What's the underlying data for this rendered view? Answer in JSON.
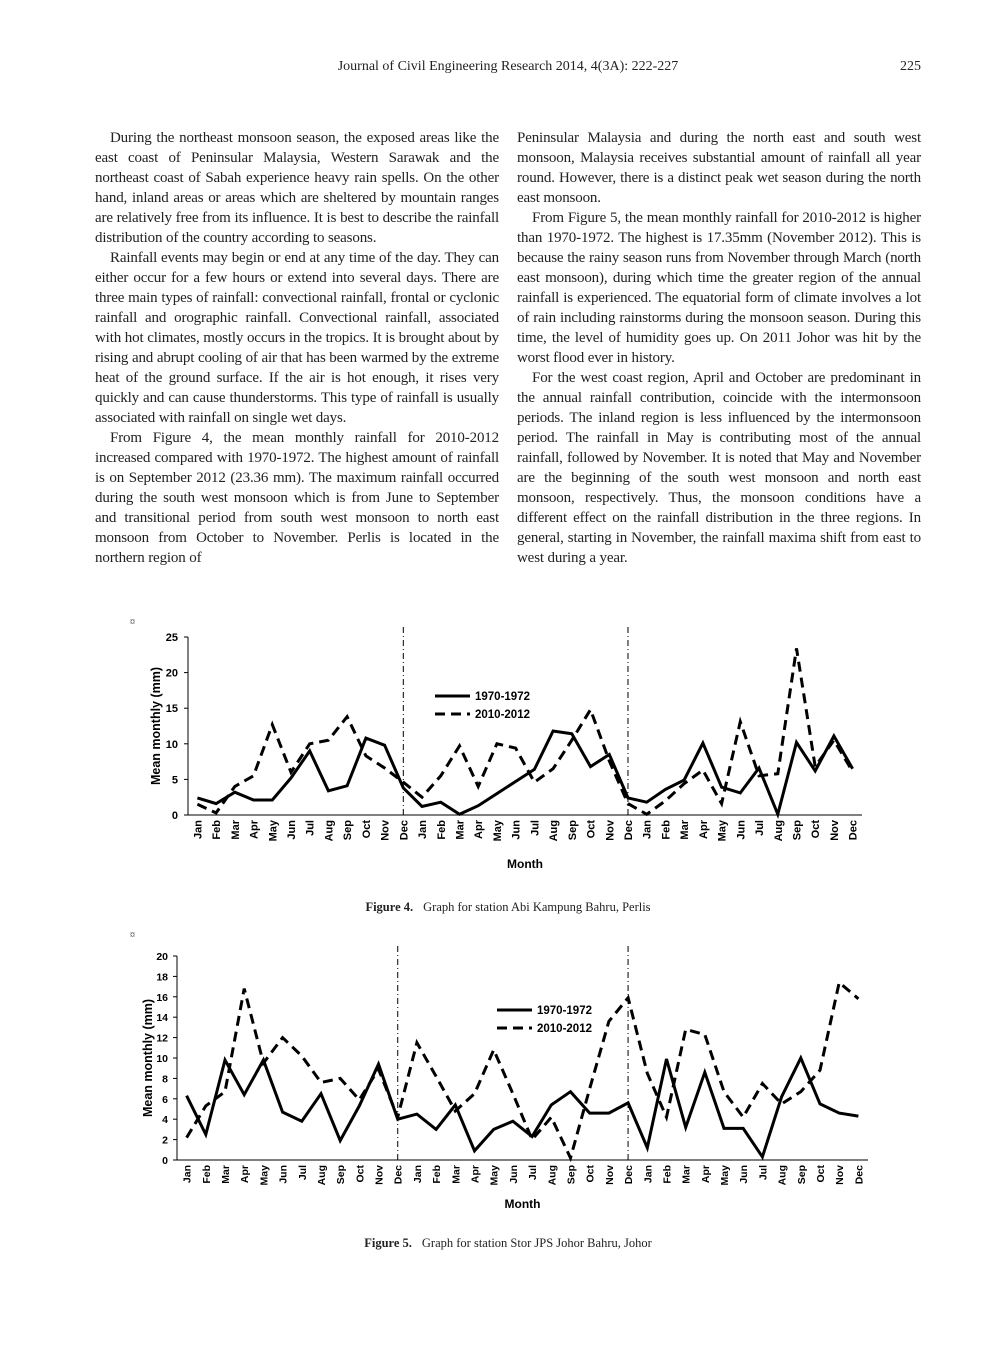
{
  "header": {
    "journal": "Journal of Civil Engineering Research 2014, 4(3A): 222-227",
    "page": "225"
  },
  "columns": [
    [
      "During the northeast monsoon season, the exposed areas like the east coast of Peninsular Malaysia, Western Sarawak and the northeast coast of Sabah experience heavy rain spells. On the other hand, inland areas or areas which are sheltered by mountain ranges are relatively free from its influence. It is best to describe the rainfall distribution of the country according to seasons.",
      "Rainfall events may begin or end at any time of the day. They can either occur for a few hours or extend into several days. There are three main types of rainfall: convectional rainfall, frontal or cyclonic rainfall and orographic rainfall. Convectional rainfall, associated with hot climates, mostly occurs in the tropics. It is brought about by rising and abrupt cooling of air that has been warmed by the extreme heat of the ground surface. If the air is hot enough, it rises very quickly and can cause thunderstorms. This type of rainfall is usually associated with rainfall on single wet days.",
      "From Figure 4, the mean monthly rainfall for 2010-2012 increased compared with 1970-1972. The highest amount of rainfall is on September 2012 (23.36 mm). The maximum rainfall occurred during the south west monsoon which is from June to September and transitional period from south west monsoon to north east monsoon from October to November. Perlis is located in the northern region of"
    ],
    [
      "Peninsular Malaysia and during the north east and south west monsoon, Malaysia receives substantial amount of rainfall all year round. However, there is a distinct peak wet season during the north east monsoon.",
      "From Figure 5, the mean monthly rainfall for 2010-2012 is higher than 1970-1972. The highest is 17.35mm (November 2012). This is because the rainy season runs from November through March (north east monsoon), during which time the greater region of the annual rainfall is experienced. The equatorial form of climate involves a lot of rain including rainstorms during the monsoon season. During this time, the level of humidity goes up. On 2011 Johor was hit by the worst flood ever in history.",
      "For the west coast region, April and October are predominant in the annual rainfall contribution, coincide with the intermonsoon periods. The inland region is less influenced by the intermonsoon period. The rainfall in May is contributing most of the annual rainfall, followed by November. It is noted that May and November are the beginning of the south west monsoon and north east monsoon, respectively. Thus, the monsoon conditions have a different effect on the rainfall distribution in the three regions. In general, starting in November, the rainfall maxima shift from east to west during a year."
    ]
  ],
  "figures": [
    {
      "marker": "¤",
      "label": "Figure 4.",
      "caption": "Graph for station Abi Kampung Bahru, Perlis"
    },
    {
      "marker": "¤",
      "label": "Figure 5.",
      "caption": "Graph for station Stor JPS Johor Bahru, Johor"
    }
  ],
  "chart_data": [
    {
      "type": "line",
      "x_label": "Month",
      "y_label": "Mean monthly (mm)",
      "categories": [
        "Jan",
        "Feb",
        "Mar",
        "Apr",
        "May",
        "Jun",
        "Jul",
        "Aug",
        "Sep",
        "Oct",
        "Nov",
        "Dec",
        "Jan",
        "Feb",
        "Mar",
        "Apr",
        "May",
        "Jun",
        "Jul",
        "Aug",
        "Sep",
        "Oct",
        "Nov",
        "Dec",
        "Jan",
        "Feb",
        "Mar",
        "Apr",
        "May",
        "Jun",
        "Jul",
        "Aug",
        "Sep",
        "Oct",
        "Nov",
        "Dec"
      ],
      "ylim": [
        0,
        25
      ],
      "yticks": [
        0,
        5,
        10,
        15,
        20,
        25
      ],
      "series": [
        {
          "name": "1970-1972",
          "color": "#000000",
          "dash": "solid",
          "values": [
            2.4,
            1.6,
            3.2,
            2.1,
            2.1,
            5.2,
            9,
            3.4,
            4.1,
            10.8,
            9.8,
            3.8,
            1.2,
            1.8,
            0.1,
            1.3,
            3,
            4.7,
            6.4,
            11.8,
            11.4,
            6.8,
            8.5,
            2.4,
            1.8,
            3.6,
            4.9,
            10.1,
            3.9,
            3.1,
            6.6,
            0.1,
            10.2,
            6.2,
            11.1,
            6.5
          ]
        },
        {
          "name": "2010-2012",
          "color": "#000000",
          "dash": "dashed",
          "values": [
            1.5,
            0.3,
            4,
            5.5,
            12.7,
            6,
            10,
            10.5,
            13.8,
            8.3,
            6.6,
            4.6,
            2.5,
            5.5,
            9.7,
            4,
            10,
            9.4,
            4.6,
            6.5,
            10.5,
            14.8,
            7.6,
            1.6,
            0.1,
            2,
            4.4,
            6.3,
            1.6,
            13.1,
            5.5,
            5.8,
            23.4,
            6.8,
            10.5,
            6.1
          ]
        }
      ]
    },
    {
      "type": "line",
      "x_label": "Month",
      "y_label": "Mean monthly (mm)",
      "categories": [
        "Jan",
        "Feb",
        "Mar",
        "Apr",
        "May",
        "Jun",
        "Jul",
        "Aug",
        "Sep",
        "Oct",
        "Nov",
        "Dec",
        "Jan",
        "Feb",
        "Mar",
        "Apr",
        "May",
        "Jun",
        "Jul",
        "Aug",
        "Sep",
        "Oct",
        "Nov",
        "Dec",
        "Jan",
        "Feb",
        "Mar",
        "Apr",
        "May",
        "Jun",
        "Jul",
        "Aug",
        "Sep",
        "Oct",
        "Nov",
        "Dec"
      ],
      "ylim": [
        0,
        20
      ],
      "yticks": [
        0,
        2,
        4,
        6,
        8,
        10,
        12,
        14,
        16,
        18,
        20
      ],
      "series": [
        {
          "name": "1970-1972",
          "color": "#000000",
          "dash": "solid",
          "values": [
            6.3,
            2.5,
            9.8,
            6.4,
            9.8,
            4.7,
            3.8,
            6.5,
            1.9,
            5.3,
            9.4,
            4,
            4.5,
            3,
            5.4,
            0.9,
            3,
            3.8,
            2.3,
            5.4,
            6.7,
            4.6,
            4.6,
            5.6,
            1.2,
            9.9,
            3.2,
            8.6,
            3.1,
            3.1,
            0.3,
            6.2,
            10,
            5.5,
            4.6,
            4.3
          ]
        },
        {
          "name": "2010-2012",
          "color": "#000000",
          "dash": "dashed",
          "values": [
            2.2,
            5.3,
            6.7,
            16.8,
            9.5,
            12,
            10.2,
            7.6,
            8,
            5.9,
            8.9,
            4.2,
            11.5,
            8.2,
            4.8,
            6.5,
            10.8,
            6.5,
            2,
            4.2,
            0.2,
            7,
            13.6,
            15.9,
            8.5,
            4.2,
            12.8,
            12.3,
            6.7,
            4.2,
            7.5,
            5.5,
            6.7,
            8.8,
            17.4,
            15.8
          ]
        }
      ]
    }
  ]
}
